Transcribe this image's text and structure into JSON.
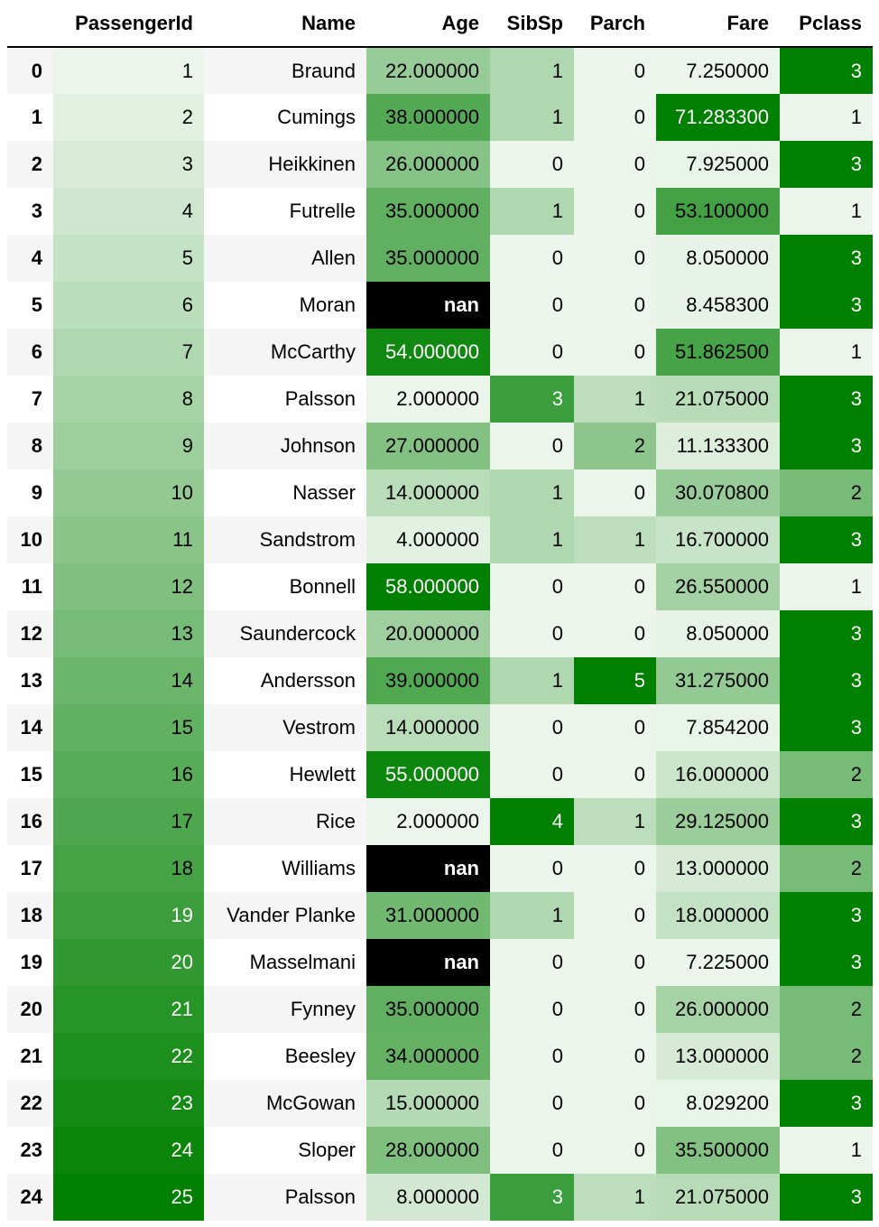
{
  "table": {
    "columns": [
      "",
      "PassengerId",
      "Name",
      "Age",
      "SibSp",
      "Parch",
      "Fare",
      "Pclass"
    ],
    "gradient": {
      "low": "#ebf5eb",
      "high": "#008000",
      "null_bg": "#000000"
    },
    "gradient_columns": [
      "PassengerId",
      "Age",
      "SibSp",
      "Parch",
      "Fare",
      "Pclass"
    ],
    "rows": [
      {
        "index": "0",
        "PassengerId": "1",
        "Name": "Braund",
        "Age": "22.000000",
        "SibSp": "1",
        "Parch": "0",
        "Fare": "7.250000",
        "Pclass": "3"
      },
      {
        "index": "1",
        "PassengerId": "2",
        "Name": "Cumings",
        "Age": "38.000000",
        "SibSp": "1",
        "Parch": "0",
        "Fare": "71.283300",
        "Pclass": "1"
      },
      {
        "index": "2",
        "PassengerId": "3",
        "Name": "Heikkinen",
        "Age": "26.000000",
        "SibSp": "0",
        "Parch": "0",
        "Fare": "7.925000",
        "Pclass": "3"
      },
      {
        "index": "3",
        "PassengerId": "4",
        "Name": "Futrelle",
        "Age": "35.000000",
        "SibSp": "1",
        "Parch": "0",
        "Fare": "53.100000",
        "Pclass": "1"
      },
      {
        "index": "4",
        "PassengerId": "5",
        "Name": "Allen",
        "Age": "35.000000",
        "SibSp": "0",
        "Parch": "0",
        "Fare": "8.050000",
        "Pclass": "3"
      },
      {
        "index": "5",
        "PassengerId": "6",
        "Name": "Moran",
        "Age": "nan",
        "SibSp": "0",
        "Parch": "0",
        "Fare": "8.458300",
        "Pclass": "3"
      },
      {
        "index": "6",
        "PassengerId": "7",
        "Name": "McCarthy",
        "Age": "54.000000",
        "SibSp": "0",
        "Parch": "0",
        "Fare": "51.862500",
        "Pclass": "1"
      },
      {
        "index": "7",
        "PassengerId": "8",
        "Name": "Palsson",
        "Age": "2.000000",
        "SibSp": "3",
        "Parch": "1",
        "Fare": "21.075000",
        "Pclass": "3"
      },
      {
        "index": "8",
        "PassengerId": "9",
        "Name": "Johnson",
        "Age": "27.000000",
        "SibSp": "0",
        "Parch": "2",
        "Fare": "11.133300",
        "Pclass": "3"
      },
      {
        "index": "9",
        "PassengerId": "10",
        "Name": "Nasser",
        "Age": "14.000000",
        "SibSp": "1",
        "Parch": "0",
        "Fare": "30.070800",
        "Pclass": "2"
      },
      {
        "index": "10",
        "PassengerId": "11",
        "Name": "Sandstrom",
        "Age": "4.000000",
        "SibSp": "1",
        "Parch": "1",
        "Fare": "16.700000",
        "Pclass": "3"
      },
      {
        "index": "11",
        "PassengerId": "12",
        "Name": "Bonnell",
        "Age": "58.000000",
        "SibSp": "0",
        "Parch": "0",
        "Fare": "26.550000",
        "Pclass": "1"
      },
      {
        "index": "12",
        "PassengerId": "13",
        "Name": "Saundercock",
        "Age": "20.000000",
        "SibSp": "0",
        "Parch": "0",
        "Fare": "8.050000",
        "Pclass": "3"
      },
      {
        "index": "13",
        "PassengerId": "14",
        "Name": "Andersson",
        "Age": "39.000000",
        "SibSp": "1",
        "Parch": "5",
        "Fare": "31.275000",
        "Pclass": "3"
      },
      {
        "index": "14",
        "PassengerId": "15",
        "Name": "Vestrom",
        "Age": "14.000000",
        "SibSp": "0",
        "Parch": "0",
        "Fare": "7.854200",
        "Pclass": "3"
      },
      {
        "index": "15",
        "PassengerId": "16",
        "Name": "Hewlett",
        "Age": "55.000000",
        "SibSp": "0",
        "Parch": "0",
        "Fare": "16.000000",
        "Pclass": "2"
      },
      {
        "index": "16",
        "PassengerId": "17",
        "Name": "Rice",
        "Age": "2.000000",
        "SibSp": "4",
        "Parch": "1",
        "Fare": "29.125000",
        "Pclass": "3"
      },
      {
        "index": "17",
        "PassengerId": "18",
        "Name": "Williams",
        "Age": "nan",
        "SibSp": "0",
        "Parch": "0",
        "Fare": "13.000000",
        "Pclass": "2"
      },
      {
        "index": "18",
        "PassengerId": "19",
        "Name": "Vander Planke",
        "Age": "31.000000",
        "SibSp": "1",
        "Parch": "0",
        "Fare": "18.000000",
        "Pclass": "3"
      },
      {
        "index": "19",
        "PassengerId": "20",
        "Name": "Masselmani",
        "Age": "nan",
        "SibSp": "0",
        "Parch": "0",
        "Fare": "7.225000",
        "Pclass": "3"
      },
      {
        "index": "20",
        "PassengerId": "21",
        "Name": "Fynney",
        "Age": "35.000000",
        "SibSp": "0",
        "Parch": "0",
        "Fare": "26.000000",
        "Pclass": "2"
      },
      {
        "index": "21",
        "PassengerId": "22",
        "Name": "Beesley",
        "Age": "34.000000",
        "SibSp": "0",
        "Parch": "0",
        "Fare": "13.000000",
        "Pclass": "2"
      },
      {
        "index": "22",
        "PassengerId": "23",
        "Name": "McGowan",
        "Age": "15.000000",
        "SibSp": "0",
        "Parch": "0",
        "Fare": "8.029200",
        "Pclass": "3"
      },
      {
        "index": "23",
        "PassengerId": "24",
        "Name": "Sloper",
        "Age": "28.000000",
        "SibSp": "0",
        "Parch": "0",
        "Fare": "35.500000",
        "Pclass": "1"
      },
      {
        "index": "24",
        "PassengerId": "25",
        "Name": "Palsson",
        "Age": "8.000000",
        "SibSp": "3",
        "Parch": "1",
        "Fare": "21.075000",
        "Pclass": "3"
      }
    ]
  }
}
